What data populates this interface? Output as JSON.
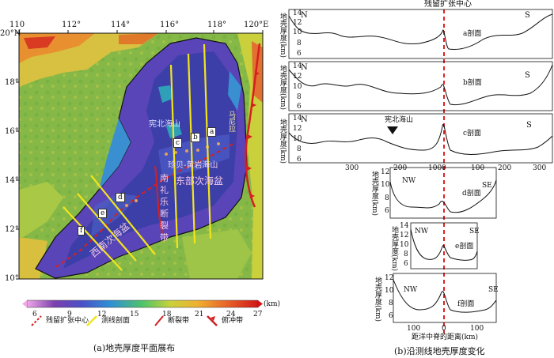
{
  "map": {
    "lon_ticks": [
      "110",
      "112°",
      "114°",
      "116°",
      "118°",
      "120°E"
    ],
    "lat_ticks": [
      "20°N",
      "18°",
      "16°",
      "14°",
      "12°",
      "10°"
    ],
    "profile_tags": [
      "a",
      "b",
      "c",
      "d",
      "e",
      "f"
    ],
    "labels": {
      "zhongsha": "宪北海山",
      "huangyan": "珍贝-黄岩海山",
      "east_basin": "东部次海盆",
      "sw_basin": "西南次海盆",
      "nanliyue_1": "南",
      "nanliyue_2": "礼",
      "nanliyue_3": "乐",
      "nanliyue_4": "断",
      "nanliyue_5": "裂",
      "nanliyue_6": "带",
      "manila": "马尼拉"
    },
    "colorbar": {
      "ticks": [
        "6",
        "9",
        "12",
        "15",
        "18",
        "21",
        "24",
        "27"
      ],
      "unit": "(km)",
      "range": [
        5,
        27
      ]
    },
    "legend": {
      "item1": "残留扩张中心",
      "item2": "测线剖面",
      "item3": "断裂带",
      "item4": "俯冲带"
    },
    "caption": "(a)地壳厚度平面展布"
  },
  "profiles": {
    "title": "残留扩张中心",
    "ylabel": "地壳厚度(km)",
    "xlabel": "距洋中脊的距离(km)",
    "caption": "(b)沿测线地壳厚度变化",
    "a": {
      "name": "a剖面",
      "left": "N",
      "right": "S",
      "yticks": [
        "14",
        "12",
        "10",
        "8",
        "6"
      ]
    },
    "b": {
      "name": "b剖面",
      "left": "N",
      "right": "S",
      "yticks": [
        "14",
        "12",
        "10",
        "8",
        "6"
      ]
    },
    "c": {
      "name": "c剖面",
      "left": "N",
      "right": "S",
      "yticks": [
        "14",
        "12",
        "10",
        "8",
        "6"
      ],
      "annotation": "宪北海山",
      "xticks": [
        "300",
        "200",
        "100",
        "0",
        "100",
        "200",
        "300"
      ]
    },
    "d": {
      "name": "d剖面",
      "left": "NW",
      "right": "SE",
      "yticks": [
        "12",
        "10",
        "8",
        "6"
      ]
    },
    "e": {
      "name": "e剖面",
      "left": "NW",
      "right": "SE",
      "yticks": [
        "14",
        "12",
        "10",
        "8",
        "6"
      ]
    },
    "f": {
      "name": "f剖面",
      "left": "NW",
      "right": "SE",
      "yticks": [
        "12",
        "10",
        "8",
        "6"
      ],
      "xticks": [
        "100",
        "0",
        "100"
      ]
    }
  }
}
